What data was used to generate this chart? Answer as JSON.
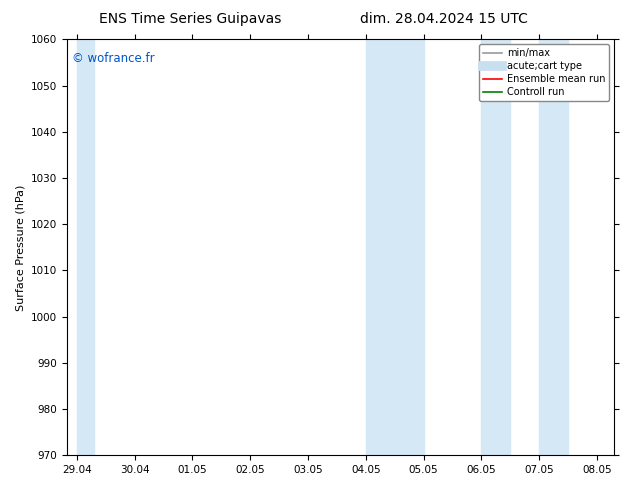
{
  "title_left": "ENS Time Series Guipavas",
  "title_right": "dim. 28.04.2024 15 UTC",
  "ylabel": "Surface Pressure (hPa)",
  "ylim": [
    970,
    1060
  ],
  "yticks": [
    970,
    980,
    990,
    1000,
    1010,
    1020,
    1030,
    1040,
    1050,
    1060
  ],
  "xtick_labels": [
    "29.04",
    "30.04",
    "01.05",
    "02.05",
    "03.05",
    "04.05",
    "05.05",
    "06.05",
    "07.05",
    "08.05"
  ],
  "shaded_bands": [
    {
      "xmin": 0,
      "xmax": 0.3,
      "color": "#d4e8f5"
    },
    {
      "xmin": 5,
      "xmax": 6,
      "color": "#d4e8f5"
    },
    {
      "xmin": 7,
      "xmax": 7.5,
      "color": "#d4e8f5"
    },
    {
      "xmin": 8,
      "xmax": 8.5,
      "color": "#d4e8f5"
    }
  ],
  "watermark": "© wofrance.fr",
  "watermark_color": "#0055cc",
  "legend_entries": [
    {
      "label": "min/max",
      "color": "#999999",
      "lw": 1.2
    },
    {
      "label": "acute;cart type",
      "color": "#c8dff0",
      "lw": 7
    },
    {
      "label": "Ensemble mean run",
      "color": "red",
      "lw": 1.2
    },
    {
      "label": "Controll run",
      "color": "green",
      "lw": 1.2
    }
  ],
  "bg_color": "#ffffff",
  "title_fontsize": 10,
  "axis_label_fontsize": 8,
  "tick_fontsize": 7.5
}
